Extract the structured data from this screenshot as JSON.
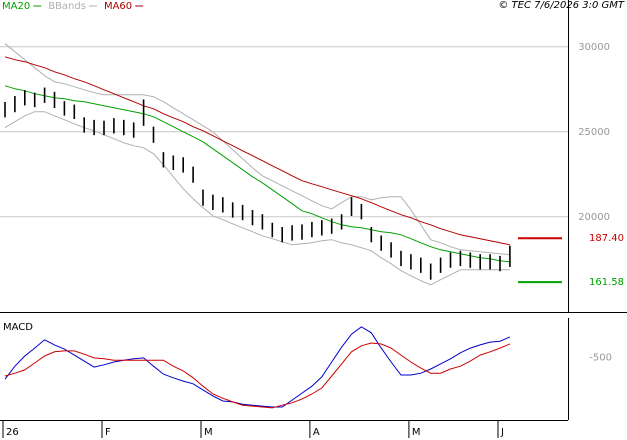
{
  "chart_data": [
    {
      "type": "ohlc",
      "source": "© TEC 7/6/2026 3:0 GMT",
      "categories": [
        "26",
        null,
        null,
        null,
        null,
        null,
        null,
        null,
        null,
        null,
        "F",
        null,
        null,
        null,
        null,
        null,
        null,
        null,
        null,
        null,
        "M",
        null,
        null,
        null,
        null,
        null,
        null,
        null,
        null,
        null,
        null,
        "A",
        null,
        null,
        null,
        null,
        null,
        null,
        null,
        null,
        null,
        "M",
        null,
        null,
        null,
        null,
        null,
        null,
        null,
        null,
        "J",
        null
      ],
      "high": [
        26750,
        27100,
        27450,
        27300,
        27600,
        27350,
        26800,
        26600,
        25850,
        25700,
        25650,
        25800,
        25700,
        25550,
        26900,
        25300,
        23800,
        23600,
        23500,
        22950,
        21600,
        21300,
        21150,
        20850,
        20700,
        20400,
        20150,
        19650,
        19400,
        19500,
        19550,
        19700,
        19800,
        19900,
        20150,
        21150,
        20750,
        19400,
        18900,
        18500,
        18000,
        17800,
        17600,
        17250,
        17600,
        17900,
        18000,
        17900,
        17800,
        17800,
        17700,
        18300
      ],
      "low": [
        25850,
        26150,
        26550,
        26450,
        26700,
        26400,
        25950,
        25750,
        24950,
        24800,
        24800,
        24900,
        24800,
        24650,
        25350,
        24350,
        22900,
        22750,
        22600,
        22000,
        20650,
        20400,
        20250,
        19950,
        19800,
        19500,
        19250,
        18800,
        18500,
        18600,
        18650,
        18800,
        18900,
        19000,
        19250,
        20050,
        19850,
        18500,
        18000,
        17600,
        17100,
        16900,
        16700,
        16300,
        16700,
        17000,
        17100,
        17000,
        16900,
        16900,
        16800,
        17050
      ],
      "color": "#000000",
      "series": [
        {
          "name": "MA20",
          "color": "#00a000",
          "values": [
            27710,
            27530,
            27410,
            27240,
            27120,
            27000,
            26940,
            26820,
            26770,
            26650,
            26530,
            26410,
            26300,
            26180,
            26060,
            25880,
            25590,
            25300,
            25000,
            24710,
            24410,
            24000,
            23590,
            23180,
            22770,
            22350,
            22000,
            21590,
            21180,
            20770,
            20350,
            20180,
            19940,
            19710,
            19530,
            19410,
            19350,
            19240,
            19120,
            19060,
            18940,
            18710,
            18470,
            18240,
            18060,
            17940,
            17830,
            17710,
            17590,
            17530,
            17410,
            17350
          ]
        },
        {
          "name": "BBands",
          "color": "#b0b0b0",
          "upper": [
            30180,
            29710,
            29240,
            28770,
            28300,
            27940,
            27820,
            27650,
            27470,
            27300,
            27180,
            27180,
            27180,
            27180,
            27180,
            27060,
            26770,
            26410,
            26060,
            25710,
            25350,
            25000,
            24470,
            23940,
            23410,
            22880,
            22410,
            22120,
            21820,
            21530,
            21240,
            20940,
            20650,
            20470,
            20830,
            21180,
            21180,
            21000,
            21120,
            21180,
            21180,
            20410,
            19530,
            18650,
            18470,
            18240,
            18060,
            18000,
            17940,
            17880,
            17830,
            17770
          ],
          "lower": [
            25240,
            25590,
            25940,
            26180,
            26180,
            25940,
            25710,
            25470,
            25240,
            25060,
            24820,
            24590,
            24350,
            24180,
            24060,
            23710,
            23060,
            22350,
            21650,
            21060,
            20530,
            20060,
            19830,
            19590,
            19350,
            19120,
            18880,
            18710,
            18530,
            18350,
            18410,
            18470,
            18590,
            18650,
            18470,
            18350,
            18180,
            18000,
            17590,
            17240,
            16830,
            16530,
            16240,
            16000,
            16300,
            16590,
            16880,
            16880,
            16880,
            16880,
            16880,
            16880
          ]
        },
        {
          "name": "MA60",
          "color": "#b00000",
          "values": [
            29410,
            29240,
            29120,
            28940,
            28770,
            28530,
            28350,
            28120,
            27940,
            27710,
            27470,
            27240,
            27000,
            26770,
            26530,
            26350,
            26060,
            25820,
            25590,
            25300,
            25060,
            24770,
            24470,
            24180,
            23880,
            23590,
            23300,
            23000,
            22710,
            22410,
            22120,
            21940,
            21770,
            21590,
            21410,
            21240,
            21060,
            20830,
            20590,
            20350,
            20120,
            19940,
            19710,
            19530,
            19300,
            19120,
            18940,
            18830,
            18710,
            18590,
            18470,
            18350
          ]
        }
      ],
      "annotations": [
        {
          "value": 18740,
          "label": "187.40",
          "color": "#cc0000"
        },
        {
          "value": 16158,
          "label": "161.58",
          "color": "#00a000"
        }
      ],
      "ylim": [
        14400,
        32750
      ],
      "yticks": [
        20000,
        25000,
        30000
      ],
      "grid": true
    },
    {
      "type": "line",
      "title": "MACD",
      "series": [
        {
          "name": "MACD",
          "color": "#0000cc",
          "values": [
            -970,
            -690,
            -470,
            -300,
            -120,
            -230,
            -320,
            -450,
            -580,
            -710,
            -660,
            -600,
            -560,
            -530,
            -510,
            -690,
            -860,
            -940,
            -1010,
            -1070,
            -1200,
            -1330,
            -1440,
            -1460,
            -1510,
            -1530,
            -1550,
            -1570,
            -1570,
            -1420,
            -1270,
            -1120,
            -920,
            -600,
            -280,
            0,
            160,
            30,
            -300,
            -600,
            -880,
            -880,
            -840,
            -750,
            -640,
            -530,
            -400,
            -300,
            -230,
            -170,
            -150,
            -60
          ]
        },
        {
          "color": "#cc0000",
          "values": [
            -900,
            -840,
            -770,
            -620,
            -470,
            -380,
            -360,
            -360,
            -430,
            -510,
            -530,
            -560,
            -560,
            -560,
            -560,
            -560,
            -560,
            -690,
            -790,
            -940,
            -1120,
            -1290,
            -1380,
            -1460,
            -1530,
            -1550,
            -1570,
            -1590,
            -1530,
            -1480,
            -1400,
            -1290,
            -1160,
            -900,
            -640,
            -380,
            -250,
            -190,
            -210,
            -300,
            -450,
            -600,
            -730,
            -840,
            -840,
            -750,
            -690,
            -580,
            -450,
            -380,
            -300,
            -210
          ]
        }
      ],
      "ylim": [
        -1850,
        350
      ],
      "yticks": [
        -500
      ]
    }
  ]
}
